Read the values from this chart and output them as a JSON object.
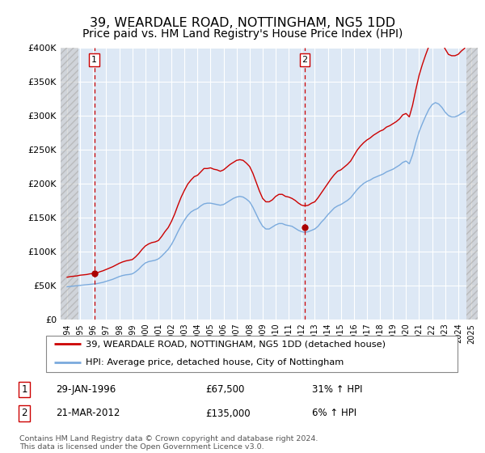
{
  "title": "39, WEARDALE ROAD, NOTTINGHAM, NG5 1DD",
  "subtitle": "Price paid vs. HM Land Registry's House Price Index (HPI)",
  "title_fontsize": 11.5,
  "subtitle_fontsize": 10,
  "bg_color": "#dde8f5",
  "grid_color": "#ffffff",
  "ylim": [
    0,
    400000
  ],
  "yticks": [
    0,
    50000,
    100000,
    150000,
    200000,
    250000,
    300000,
    350000,
    400000
  ],
  "ytick_labels": [
    "£0",
    "£50K",
    "£100K",
    "£150K",
    "£200K",
    "£250K",
    "£300K",
    "£350K",
    "£400K"
  ],
  "xlim_start": 1993.5,
  "xlim_end": 2025.5,
  "sale1_x": 1996.08,
  "sale1_y": 67500,
  "sale2_x": 2012.22,
  "sale2_y": 135000,
  "sale1_label": "1",
  "sale2_label": "2",
  "sale1_date": "29-JAN-1996",
  "sale1_price": "£67,500",
  "sale1_hpi": "31% ↑ HPI",
  "sale2_date": "21-MAR-2012",
  "sale2_price": "£135,000",
  "sale2_hpi": "6% ↑ HPI",
  "red_line_color": "#cc0000",
  "blue_line_color": "#7aaadd",
  "marker_color": "#aa0000",
  "vline_color": "#cc0000",
  "box_edge_color": "#cc0000",
  "legend_line1": "39, WEARDALE ROAD, NOTTINGHAM, NG5 1DD (detached house)",
  "legend_line2": "HPI: Average price, detached house, City of Nottingham",
  "footer": "Contains HM Land Registry data © Crown copyright and database right 2024.\nThis data is licensed under the Open Government Licence v3.0.",
  "hpi_data_x": [
    1994.0,
    1994.25,
    1994.5,
    1994.75,
    1995.0,
    1995.25,
    1995.5,
    1995.75,
    1996.0,
    1996.25,
    1996.5,
    1996.75,
    1997.0,
    1997.25,
    1997.5,
    1997.75,
    1998.0,
    1998.25,
    1998.5,
    1998.75,
    1999.0,
    1999.25,
    1999.5,
    1999.75,
    2000.0,
    2000.25,
    2000.5,
    2000.75,
    2001.0,
    2001.25,
    2001.5,
    2001.75,
    2002.0,
    2002.25,
    2002.5,
    2002.75,
    2003.0,
    2003.25,
    2003.5,
    2003.75,
    2004.0,
    2004.25,
    2004.5,
    2004.75,
    2005.0,
    2005.25,
    2005.5,
    2005.75,
    2006.0,
    2006.25,
    2006.5,
    2006.75,
    2007.0,
    2007.25,
    2007.5,
    2007.75,
    2008.0,
    2008.25,
    2008.5,
    2008.75,
    2009.0,
    2009.25,
    2009.5,
    2009.75,
    2010.0,
    2010.25,
    2010.5,
    2010.75,
    2011.0,
    2011.25,
    2011.5,
    2011.75,
    2012.0,
    2012.25,
    2012.5,
    2012.75,
    2013.0,
    2013.25,
    2013.5,
    2013.75,
    2014.0,
    2014.25,
    2014.5,
    2014.75,
    2015.0,
    2015.25,
    2015.5,
    2015.75,
    2016.0,
    2016.25,
    2016.5,
    2016.75,
    2017.0,
    2017.25,
    2017.5,
    2017.75,
    2018.0,
    2018.25,
    2018.5,
    2018.75,
    2019.0,
    2019.25,
    2019.5,
    2019.75,
    2020.0,
    2020.25,
    2020.5,
    2020.75,
    2021.0,
    2021.25,
    2021.5,
    2021.75,
    2022.0,
    2022.25,
    2022.5,
    2022.75,
    2023.0,
    2023.25,
    2023.5,
    2023.75,
    2024.0,
    2024.25,
    2024.5
  ],
  "hpi_data_y": [
    48000,
    48500,
    49000,
    49500,
    50000,
    50500,
    51000,
    51500,
    52000,
    52500,
    53500,
    54500,
    56000,
    57500,
    59000,
    61000,
    63000,
    64500,
    65500,
    66000,
    67000,
    70000,
    74000,
    79000,
    83000,
    85000,
    86000,
    87000,
    89000,
    93000,
    98000,
    103000,
    110000,
    119000,
    129000,
    138000,
    146000,
    153000,
    158000,
    161000,
    163000,
    167000,
    170000,
    171000,
    171000,
    170000,
    169000,
    168000,
    169000,
    172000,
    175000,
    178000,
    180000,
    181000,
    180000,
    177000,
    173000,
    165000,
    155000,
    145000,
    137000,
    133000,
    133000,
    136000,
    139000,
    141000,
    141000,
    139000,
    138000,
    137000,
    134000,
    131000,
    129000,
    128000,
    129000,
    131000,
    133000,
    137000,
    143000,
    148000,
    154000,
    159000,
    164000,
    167000,
    169000,
    172000,
    175000,
    179000,
    185000,
    191000,
    196000,
    200000,
    203000,
    205000,
    208000,
    210000,
    212000,
    214000,
    217000,
    219000,
    221000,
    224000,
    227000,
    231000,
    233000,
    229000,
    242000,
    260000,
    276000,
    288000,
    299000,
    309000,
    316000,
    319000,
    317000,
    312000,
    305000,
    300000,
    298000,
    298000,
    300000,
    303000,
    306000
  ],
  "red_data_x": [
    1994.0,
    1994.25,
    1994.5,
    1994.75,
    1995.0,
    1995.25,
    1995.5,
    1995.75,
    1996.0,
    1996.25,
    1996.5,
    1996.75,
    1997.0,
    1997.25,
    1997.5,
    1997.75,
    1998.0,
    1998.25,
    1998.5,
    1998.75,
    1999.0,
    1999.25,
    1999.5,
    1999.75,
    2000.0,
    2000.25,
    2000.5,
    2000.75,
    2001.0,
    2001.25,
    2001.5,
    2001.75,
    2002.0,
    2002.25,
    2002.5,
    2002.75,
    2003.0,
    2003.25,
    2003.5,
    2003.75,
    2004.0,
    2004.25,
    2004.5,
    2004.75,
    2005.0,
    2005.25,
    2005.5,
    2005.75,
    2006.0,
    2006.25,
    2006.5,
    2006.75,
    2007.0,
    2007.25,
    2007.5,
    2007.75,
    2008.0,
    2008.25,
    2008.5,
    2008.75,
    2009.0,
    2009.25,
    2009.5,
    2009.75,
    2010.0,
    2010.25,
    2010.5,
    2010.75,
    2011.0,
    2011.25,
    2011.5,
    2011.75,
    2012.0,
    2012.25,
    2012.5,
    2012.75,
    2013.0,
    2013.25,
    2013.5,
    2013.75,
    2014.0,
    2014.25,
    2014.5,
    2014.75,
    2015.0,
    2015.25,
    2015.5,
    2015.75,
    2016.0,
    2016.25,
    2016.5,
    2016.75,
    2017.0,
    2017.25,
    2017.5,
    2017.75,
    2018.0,
    2018.25,
    2018.5,
    2018.75,
    2019.0,
    2019.25,
    2019.5,
    2019.75,
    2020.0,
    2020.25,
    2020.5,
    2020.75,
    2021.0,
    2021.25,
    2021.5,
    2021.75,
    2022.0,
    2022.25,
    2022.5,
    2022.75,
    2023.0,
    2023.25,
    2023.5,
    2023.75,
    2024.0,
    2024.25,
    2024.5
  ],
  "red_data_y": [
    62000,
    63000,
    63500,
    64000,
    65000,
    65500,
    66000,
    67000,
    67500,
    68000,
    70000,
    71500,
    73500,
    75500,
    77500,
    80000,
    82500,
    84500,
    86000,
    87000,
    88000,
    92000,
    97000,
    103000,
    108000,
    111000,
    113000,
    114000,
    116000,
    122000,
    129000,
    135000,
    144000,
    155000,
    168000,
    180000,
    190000,
    199000,
    205000,
    210000,
    212000,
    217000,
    222000,
    222000,
    223000,
    221000,
    220000,
    218000,
    220000,
    224000,
    228000,
    231000,
    234000,
    235000,
    234000,
    230000,
    225000,
    215000,
    202000,
    189000,
    178000,
    173000,
    173000,
    176000,
    181000,
    184000,
    184000,
    181000,
    180000,
    178000,
    175000,
    171000,
    168000,
    167000,
    168000,
    171000,
    173000,
    179000,
    186000,
    193000,
    200000,
    207000,
    213000,
    218000,
    220000,
    224000,
    228000,
    233000,
    241000,
    249000,
    255000,
    260000,
    264000,
    267000,
    271000,
    274000,
    277000,
    279000,
    283000,
    285000,
    288000,
    291000,
    295000,
    301000,
    303000,
    298000,
    315000,
    338000,
    359000,
    375000,
    389000,
    402000,
    411000,
    415000,
    412000,
    407000,
    398000,
    390000,
    388000,
    388000,
    390000,
    395000,
    399000
  ]
}
